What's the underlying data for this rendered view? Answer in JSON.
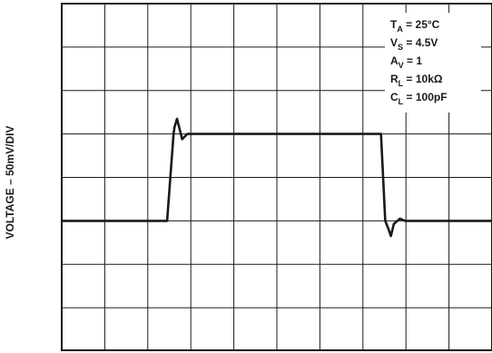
{
  "chart_data": {
    "type": "line",
    "ylabel": "VOLTAGE – 50mV/DIV",
    "xlabel": "",
    "grid": true,
    "x_divisions": 10,
    "y_divisions": 8,
    "annotations": [
      {
        "main": "T",
        "sub": "A",
        "rest": " = 25°C"
      },
      {
        "main": "V",
        "sub": "S",
        "rest": " = 4.5V"
      },
      {
        "main": "A",
        "sub": "V",
        "rest": " = 1"
      },
      {
        "main": "R",
        "sub": "L",
        "rest": " = 10kΩ"
      },
      {
        "main": "C",
        "sub": "L",
        "rest": " = 100pF"
      }
    ],
    "series": [
      {
        "x": [
          0,
          2.45,
          2.6,
          2.62,
          2.68,
          2.8,
          2.92,
          3.05,
          3.3,
          7.3,
          7.42,
          7.52,
          7.6,
          7.65,
          7.72,
          7.86,
          7.98,
          10
        ],
        "y": [
          3.0,
          3.0,
          5.0,
          5.15,
          5.35,
          4.88,
          5.0,
          5.0,
          5.0,
          5.0,
          5.0,
          3.0,
          2.8,
          2.65,
          2.93,
          3.05,
          3.0,
          3.0
        ]
      }
    ]
  }
}
